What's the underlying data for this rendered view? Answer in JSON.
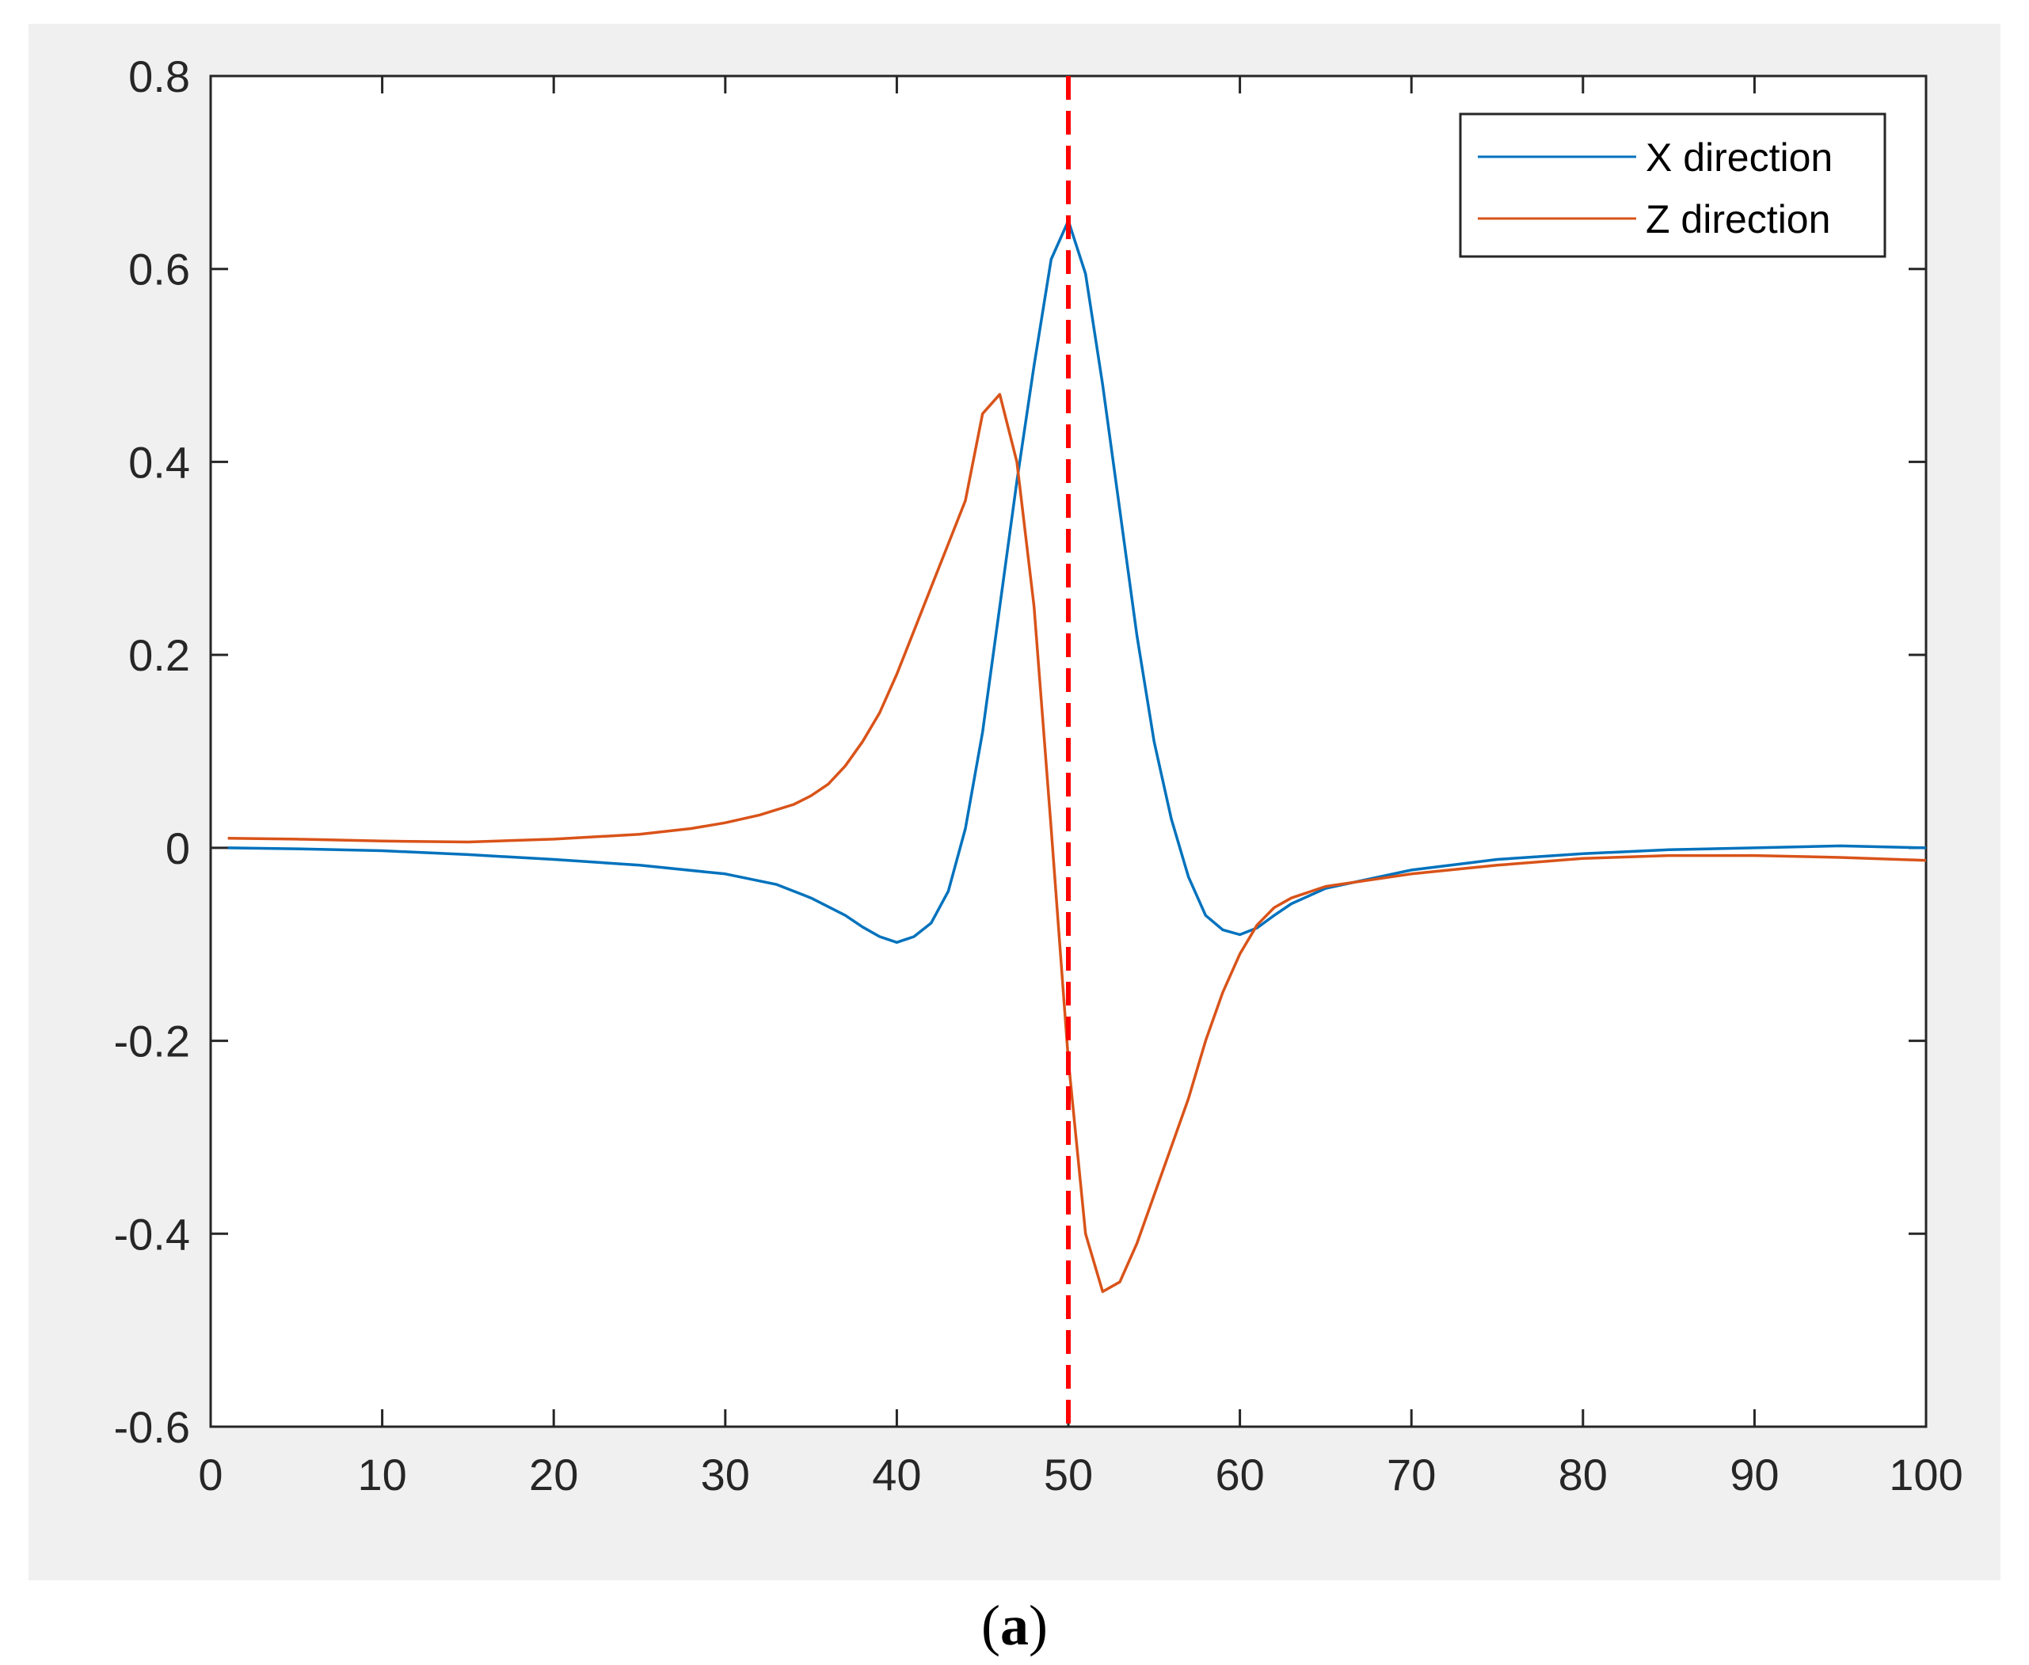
{
  "caption": {
    "open": "(",
    "letter": "a",
    "close": ")"
  },
  "chart_data": {
    "type": "line",
    "title": "",
    "xlabel": "",
    "ylabel": "",
    "xlim": [
      0,
      100
    ],
    "ylim": [
      -0.6,
      0.8
    ],
    "x_ticks": [
      0,
      10,
      20,
      30,
      40,
      50,
      60,
      70,
      80,
      90,
      100
    ],
    "x_tick_labels": [
      "0",
      "10",
      "20",
      "30",
      "40",
      "50",
      "60",
      "70",
      "80",
      "90",
      "100"
    ],
    "y_ticks": [
      0.8,
      0.6,
      0.4,
      0.2,
      0,
      -0.2,
      -0.4,
      -0.6
    ],
    "y_tick_labels": [
      "0.8",
      "0.6",
      "0.4",
      "0.2",
      "0",
      "-0.2",
      "-0.4",
      "-0.6"
    ],
    "grid": false,
    "legend_position": "top-right",
    "vertical_reference_line": {
      "x": 50,
      "color": "#ff0000",
      "style": "dashed"
    },
    "series": [
      {
        "name": "X direction",
        "color": "#0072bd",
        "x": [
          1,
          5,
          10,
          15,
          20,
          25,
          30,
          33,
          35,
          37,
          38,
          39,
          40,
          41,
          42,
          43,
          44,
          45,
          46,
          47,
          48,
          49,
          50,
          51,
          52,
          53,
          54,
          55,
          56,
          57,
          58,
          59,
          60,
          61,
          62,
          63,
          65,
          70,
          75,
          80,
          85,
          90,
          95,
          100
        ],
        "y": [
          0.0,
          -0.001,
          -0.003,
          -0.007,
          -0.012,
          -0.018,
          -0.027,
          -0.038,
          -0.052,
          -0.07,
          -0.082,
          -0.092,
          -0.098,
          -0.092,
          -0.078,
          -0.045,
          0.02,
          0.12,
          0.25,
          0.38,
          0.5,
          0.61,
          0.65,
          0.595,
          0.48,
          0.35,
          0.22,
          0.11,
          0.03,
          -0.03,
          -0.07,
          -0.085,
          -0.09,
          -0.083,
          -0.07,
          -0.058,
          -0.042,
          -0.023,
          -0.012,
          -0.006,
          -0.002,
          0.0,
          0.002,
          0.0
        ]
      },
      {
        "name": "Z direction",
        "color": "#d95319",
        "x": [
          1,
          5,
          10,
          15,
          20,
          25,
          28,
          30,
          32,
          34,
          35,
          36,
          37,
          38,
          39,
          40,
          41,
          42,
          43,
          44,
          45,
          46,
          47,
          48,
          49,
          50,
          51,
          52,
          53,
          54,
          55,
          56,
          57,
          58,
          59,
          60,
          61,
          62,
          63,
          65,
          70,
          75,
          80,
          85,
          90,
          95,
          100
        ],
        "y": [
          0.01,
          0.009,
          0.007,
          0.006,
          0.009,
          0.014,
          0.02,
          0.026,
          0.034,
          0.045,
          0.054,
          0.066,
          0.085,
          0.11,
          0.14,
          0.18,
          0.225,
          0.27,
          0.315,
          0.36,
          0.45,
          0.47,
          0.4,
          0.25,
          0.02,
          -0.22,
          -0.4,
          -0.46,
          -0.45,
          -0.41,
          -0.36,
          -0.31,
          -0.26,
          -0.2,
          -0.15,
          -0.11,
          -0.08,
          -0.062,
          -0.052,
          -0.04,
          -0.027,
          -0.018,
          -0.011,
          -0.008,
          -0.008,
          -0.01,
          -0.013
        ]
      }
    ]
  }
}
